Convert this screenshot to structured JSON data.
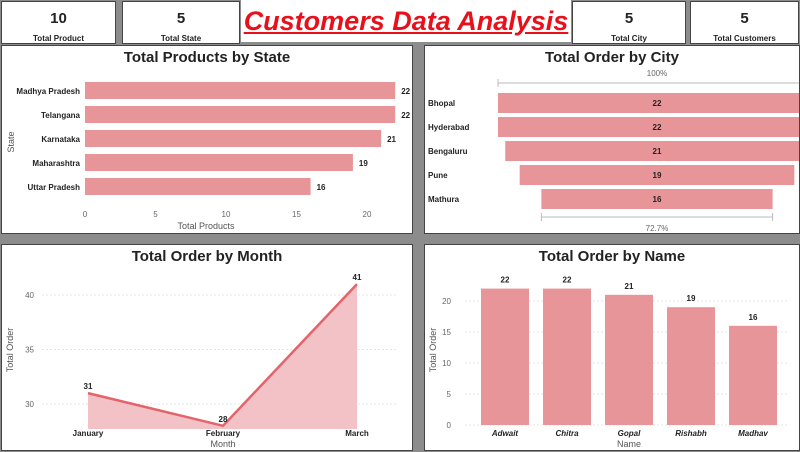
{
  "title": "Customers Data Analysis",
  "kpis": [
    {
      "value": "10",
      "label": "Total Product"
    },
    {
      "value": "5",
      "label": "Total State"
    },
    {
      "value": "5",
      "label": "Total City"
    },
    {
      "value": "5",
      "label": "Total Customers"
    }
  ],
  "colors": {
    "bar": "#e8959a",
    "area_fill": "#f2c2c6",
    "line": "#e3646b",
    "background": "#8c8c8c"
  },
  "chart_data": [
    {
      "type": "bar",
      "orientation": "horizontal",
      "title": "Total Products by State",
      "xlabel": "Total Products",
      "ylabel": "State",
      "categories": [
        "Madhya Pradesh",
        "Telangana",
        "Karnataka",
        "Maharashtra",
        "Uttar Pradesh"
      ],
      "values": [
        22,
        22,
        21,
        19,
        16
      ],
      "xlim": [
        0,
        22
      ],
      "xticks": [
        0,
        5,
        10,
        15,
        20
      ]
    },
    {
      "type": "funnel",
      "title": "Total Order by City",
      "categories": [
        "Bhopal",
        "Hyderabad",
        "Bengaluru",
        "Pune",
        "Mathura"
      ],
      "values": [
        22,
        22,
        21,
        19,
        16
      ],
      "top_label": "100%",
      "bottom_label": "72.7%"
    },
    {
      "type": "area",
      "title": "Total Order by Month",
      "xlabel": "Month",
      "ylabel": "Total Order",
      "categories": [
        "January",
        "February",
        "March"
      ],
      "values": [
        31,
        28,
        41
      ],
      "ylim": [
        27,
        41
      ],
      "yticks": [
        30,
        35,
        40
      ]
    },
    {
      "type": "bar",
      "orientation": "vertical",
      "title": "Total Order by Name",
      "xlabel": "Name",
      "ylabel": "Total Order",
      "categories": [
        "Adwait",
        "Chitra",
        "Gopal",
        "Rishabh",
        "Madhav"
      ],
      "values": [
        22,
        22,
        21,
        19,
        16
      ],
      "ylim": [
        0,
        22
      ],
      "yticks": [
        0,
        5,
        10,
        15,
        20
      ]
    }
  ]
}
